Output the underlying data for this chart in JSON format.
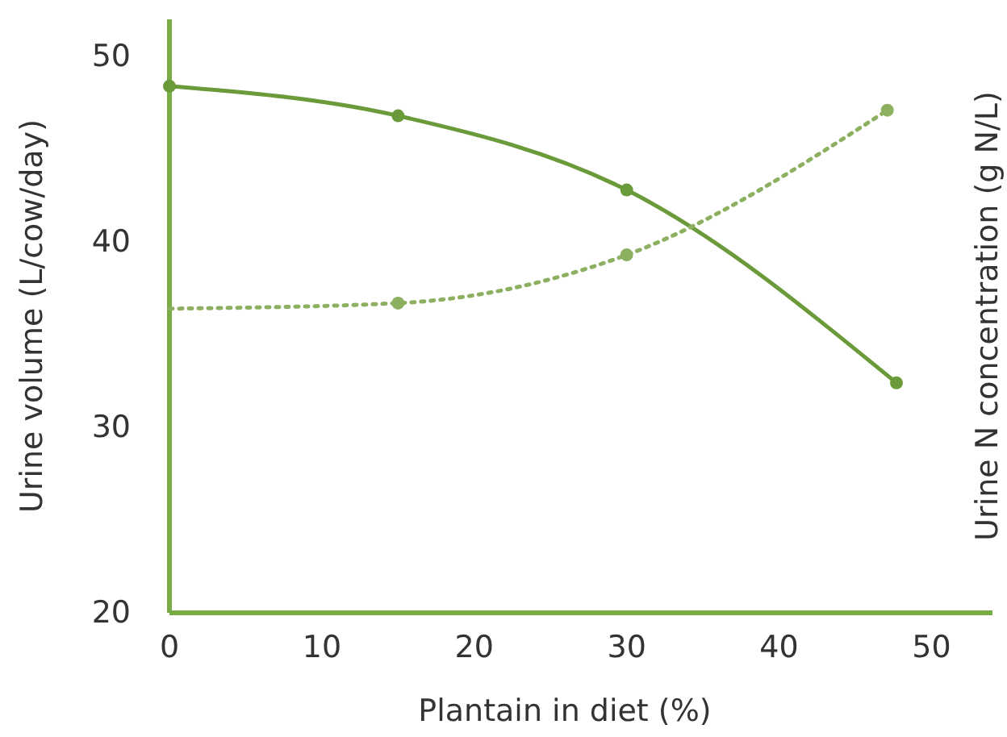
{
  "chart_data": {
    "type": "line",
    "xlabel": "Plantain in diet (%)",
    "ylabel": "Urine volume (L/cow/day)",
    "y2label": "Urine N concentration (g N/L)",
    "xlim": [
      0,
      54
    ],
    "xticks": [
      0,
      10,
      20,
      30,
      40,
      50
    ],
    "ylim": [
      20,
      52
    ],
    "yticks": [
      20,
      30,
      40,
      50
    ],
    "grid": false,
    "series": [
      {
        "color": "#6a9a3a",
        "line_style": "solid",
        "marker": "none",
        "x": [
          0,
          15,
          30,
          47.7
        ],
        "values": [
          48.4,
          46.8,
          42.8,
          32.4
        ]
      },
      {
        "type": "scatter",
        "color": "#6a9a3a",
        "marker": "circle",
        "x": [
          0,
          15,
          30,
          47.7
        ],
        "values": [
          48.4,
          46.8,
          42.8,
          32.4
        ]
      },
      {
        "color": "#8db060",
        "line_style": "dotted",
        "marker": "none",
        "x": [
          0,
          15,
          30,
          47.1
        ],
        "values": [
          36.4,
          36.7,
          39.3,
          47.1
        ]
      },
      {
        "type": "scatter",
        "color": "#8db060",
        "marker": "circle",
        "x": [
          15,
          30,
          47.1
        ],
        "values": [
          36.7,
          39.3,
          47.1
        ]
      }
    ]
  }
}
